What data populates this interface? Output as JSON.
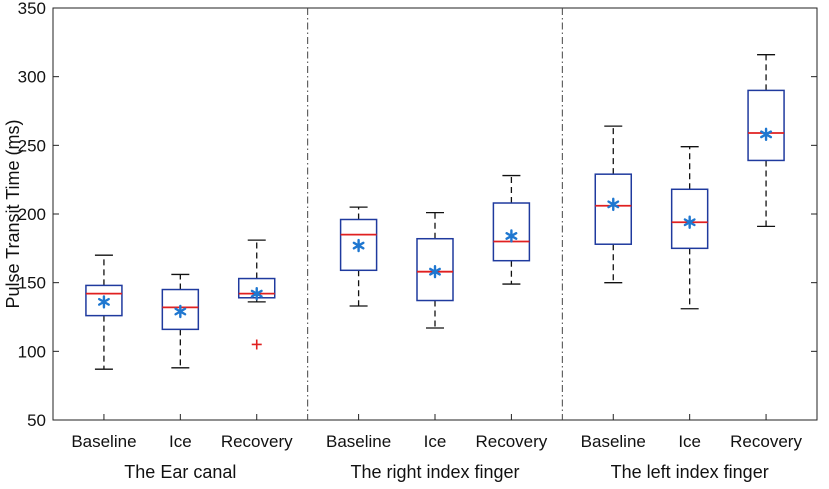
{
  "chart_data": {
    "type": "box",
    "ylabel": "Pulse Transit Time (ms)",
    "xlabel": "",
    "ylim": [
      50,
      350
    ],
    "yticks": [
      50,
      100,
      150,
      200,
      250,
      300,
      350
    ],
    "grid": false,
    "groups": [
      {
        "name": "The Ear canal",
        "boxes": [
          {
            "label": "Baseline",
            "whisker_low": 87,
            "q1": 126,
            "median": 142,
            "q3": 148,
            "whisker_high": 170,
            "mean": 136,
            "outliers": []
          },
          {
            "label": "Ice",
            "whisker_low": 88,
            "q1": 116,
            "median": 132,
            "q3": 145,
            "whisker_high": 156,
            "mean": 129,
            "outliers": []
          },
          {
            "label": "Recovery",
            "whisker_low": 136,
            "q1": 139,
            "median": 142,
            "q3": 153,
            "whisker_high": 181,
            "mean": 142,
            "outliers": [
              105
            ]
          }
        ]
      },
      {
        "name": "The right index finger",
        "boxes": [
          {
            "label": "Baseline",
            "whisker_low": 133,
            "q1": 159,
            "median": 185,
            "q3": 196,
            "whisker_high": 205,
            "mean": 177,
            "outliers": []
          },
          {
            "label": "Ice",
            "whisker_low": 117,
            "q1": 137,
            "median": 158,
            "q3": 182,
            "whisker_high": 201,
            "mean": 158,
            "outliers": []
          },
          {
            "label": "Recovery",
            "whisker_low": 149,
            "q1": 166,
            "median": 180,
            "q3": 208,
            "whisker_high": 228,
            "mean": 184,
            "outliers": []
          }
        ]
      },
      {
        "name": "The left index finger",
        "boxes": [
          {
            "label": "Baseline",
            "whisker_low": 150,
            "q1": 178,
            "median": 206,
            "q3": 229,
            "whisker_high": 264,
            "mean": 207,
            "outliers": []
          },
          {
            "label": "Ice",
            "whisker_low": 131,
            "q1": 175,
            "median": 194,
            "q3": 218,
            "whisker_high": 249,
            "mean": 194,
            "outliers": []
          },
          {
            "label": "Recovery",
            "whisker_low": 191,
            "q1": 239,
            "median": 259,
            "q3": 290,
            "whisker_high": 316,
            "mean": 258,
            "outliers": []
          }
        ]
      }
    ],
    "colors": {
      "box": "#1f3a9e",
      "median": "#e02020",
      "mean": "#1f77d0",
      "outlier": "#e02020",
      "whisker": "#111111",
      "divider": "#444444",
      "axis": "#222222"
    }
  }
}
